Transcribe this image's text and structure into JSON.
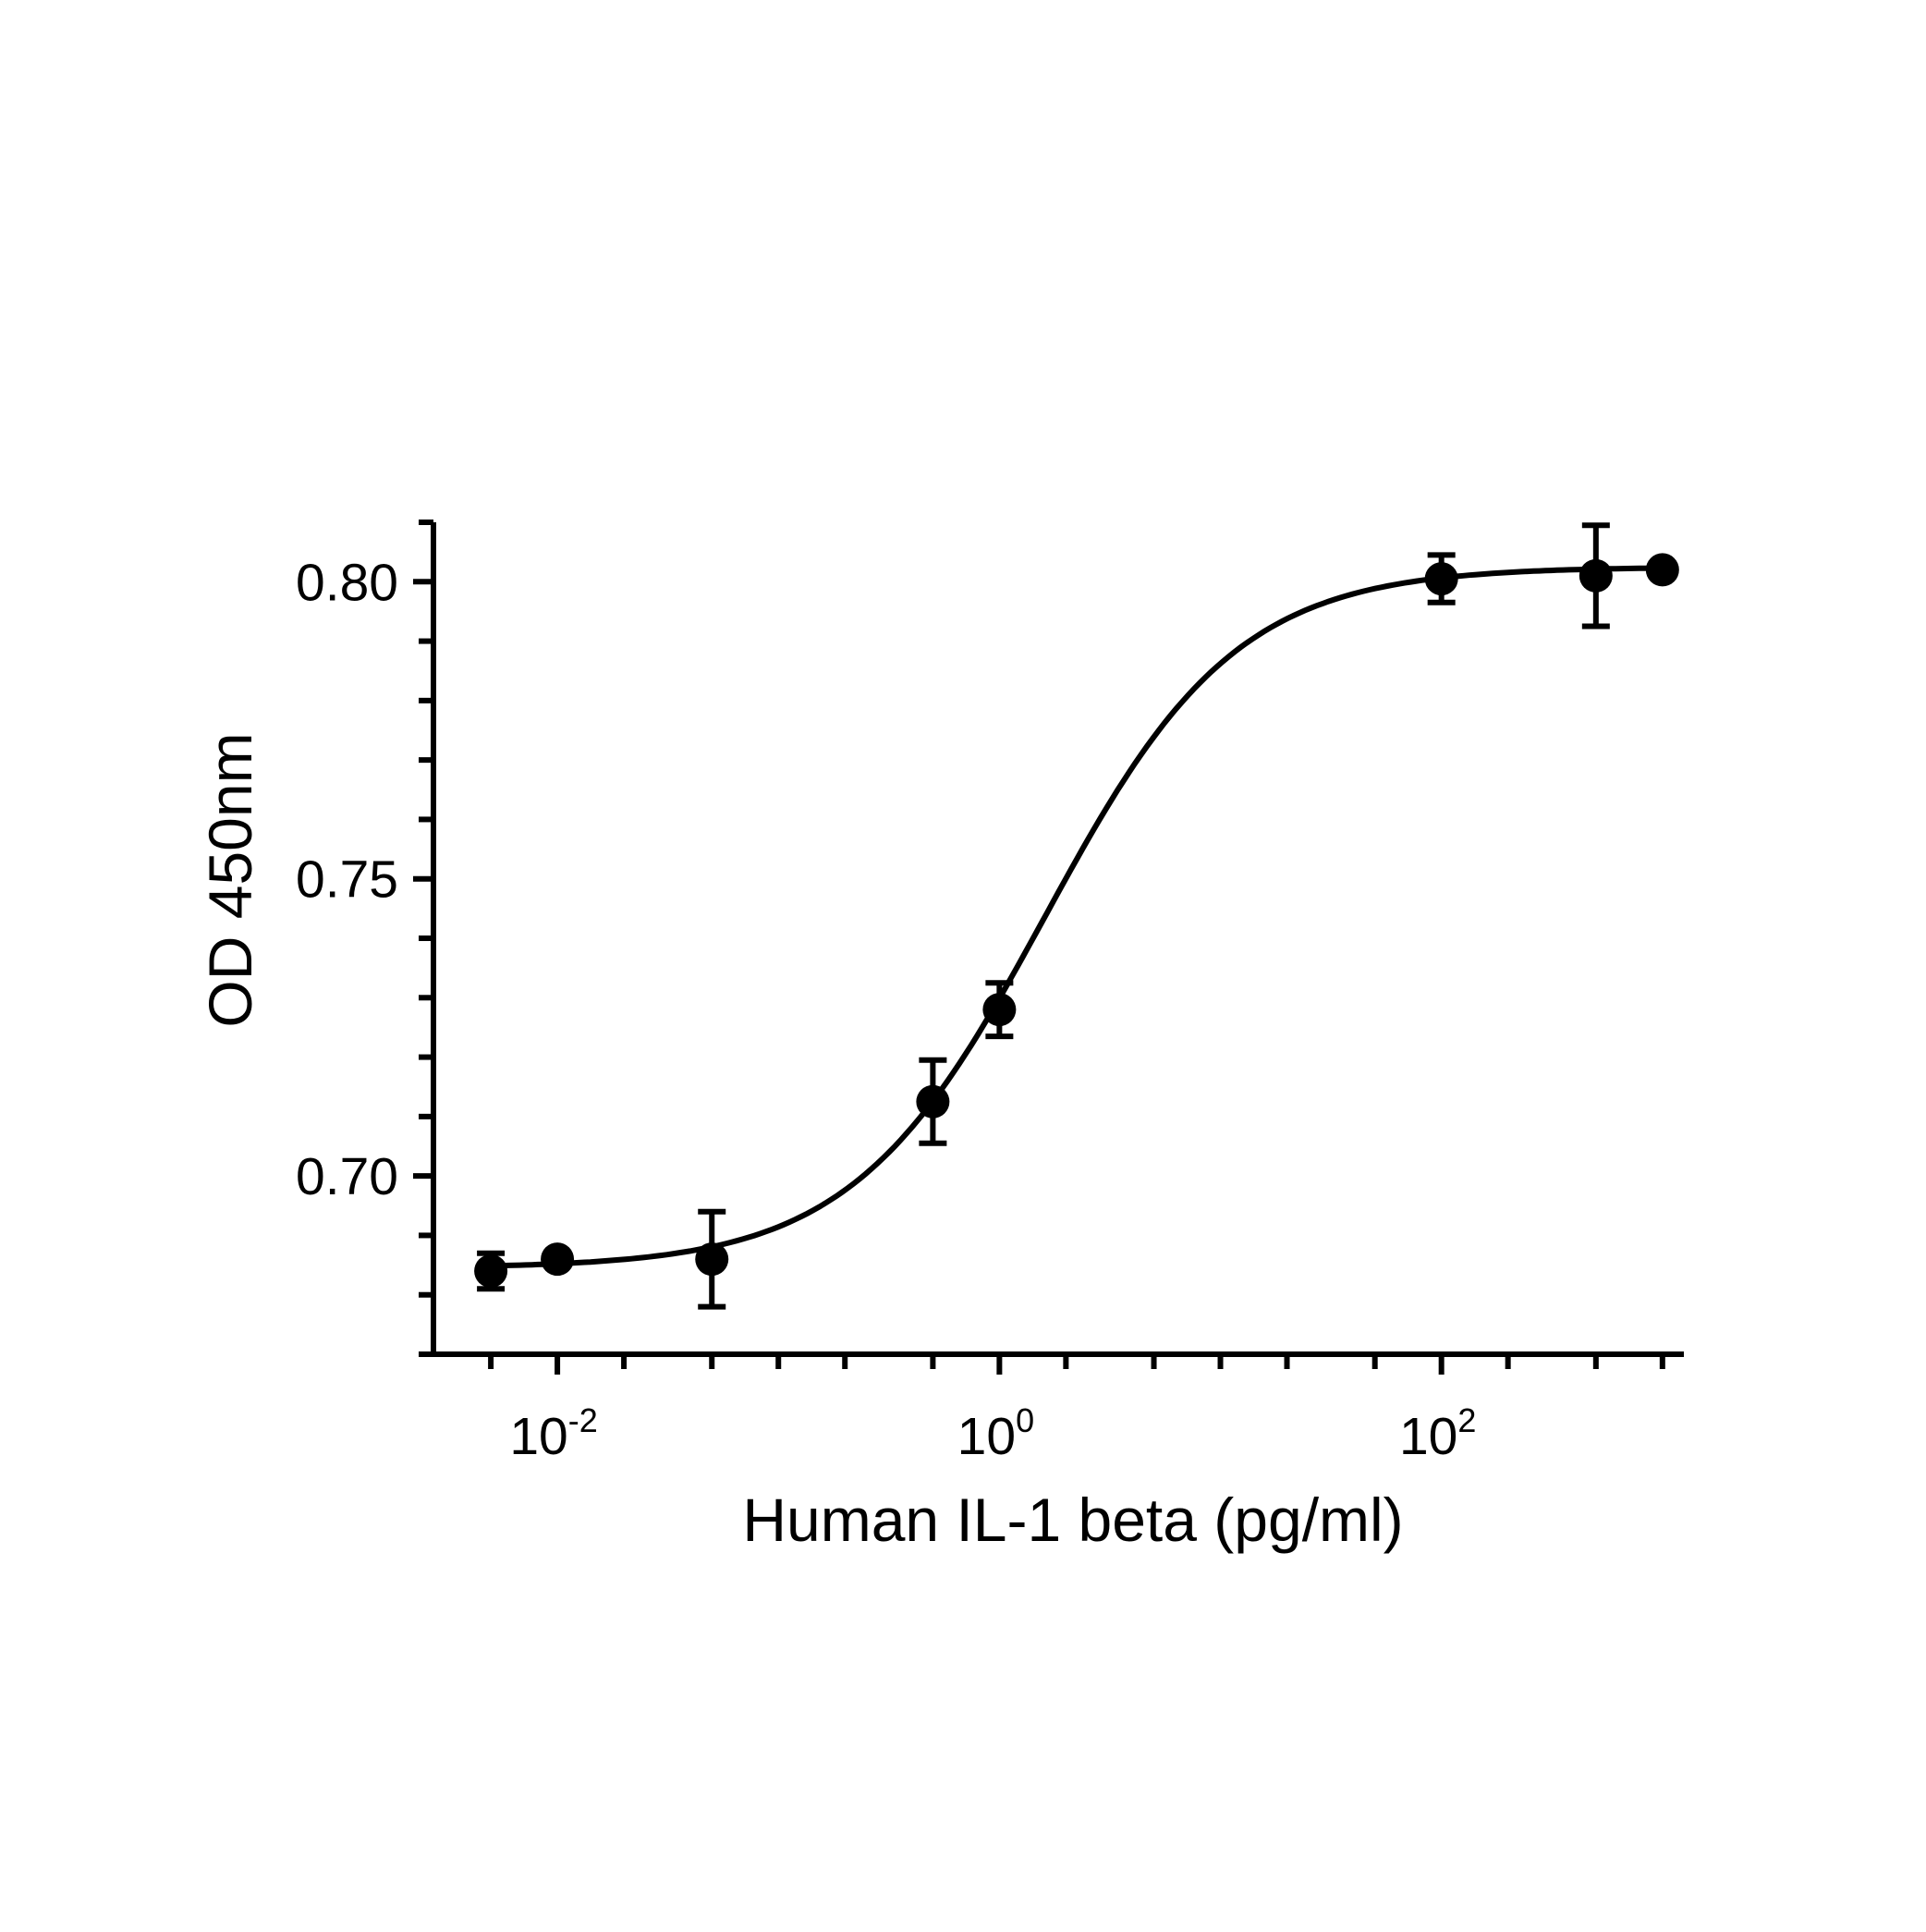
{
  "chart_data": {
    "type": "scatter",
    "title": "",
    "xlabel": "Human IL-1 beta (pg/ml)",
    "ylabel": "OD 450nm",
    "x_scale": "log10",
    "xlim": [
      0.00275,
      1250
    ],
    "ylim": [
      0.67,
      0.81
    ],
    "x_ticks": [
      {
        "value": 0.01,
        "base": "10",
        "exp": "-2"
      },
      {
        "value": 1,
        "base": "10",
        "exp": "0"
      },
      {
        "value": 100,
        "base": "10",
        "exp": "2"
      }
    ],
    "y_ticks": [
      {
        "value": 0.7,
        "label": "0.70"
      },
      {
        "value": 0.75,
        "label": "0.75"
      },
      {
        "value": 0.8,
        "label": "0.80"
      }
    ],
    "grid": false,
    "legend": "none",
    "colors": {
      "marks": "#000000",
      "background": "#ffffff"
    },
    "series": [
      {
        "points": [
          {
            "x": 0.005,
            "y": 0.684,
            "err": 0.003
          },
          {
            "x": 0.01,
            "y": 0.686,
            "err": 0.0
          },
          {
            "x": 0.05,
            "y": 0.686,
            "err": 0.008
          },
          {
            "x": 0.5,
            "y": 0.7125,
            "err": 0.007
          },
          {
            "x": 1.0,
            "y": 0.728,
            "err": 0.0045
          },
          {
            "x": 100,
            "y": 0.8005,
            "err": 0.004
          },
          {
            "x": 500,
            "y": 0.801,
            "err": 0.0085
          },
          {
            "x": 1000,
            "y": 0.802,
            "err": 0.0
          }
        ],
        "fit": {
          "model": "4PL",
          "bottom": 0.6845,
          "top": 0.8025,
          "ec50": 1.6,
          "hill": 1.0
        }
      }
    ]
  }
}
